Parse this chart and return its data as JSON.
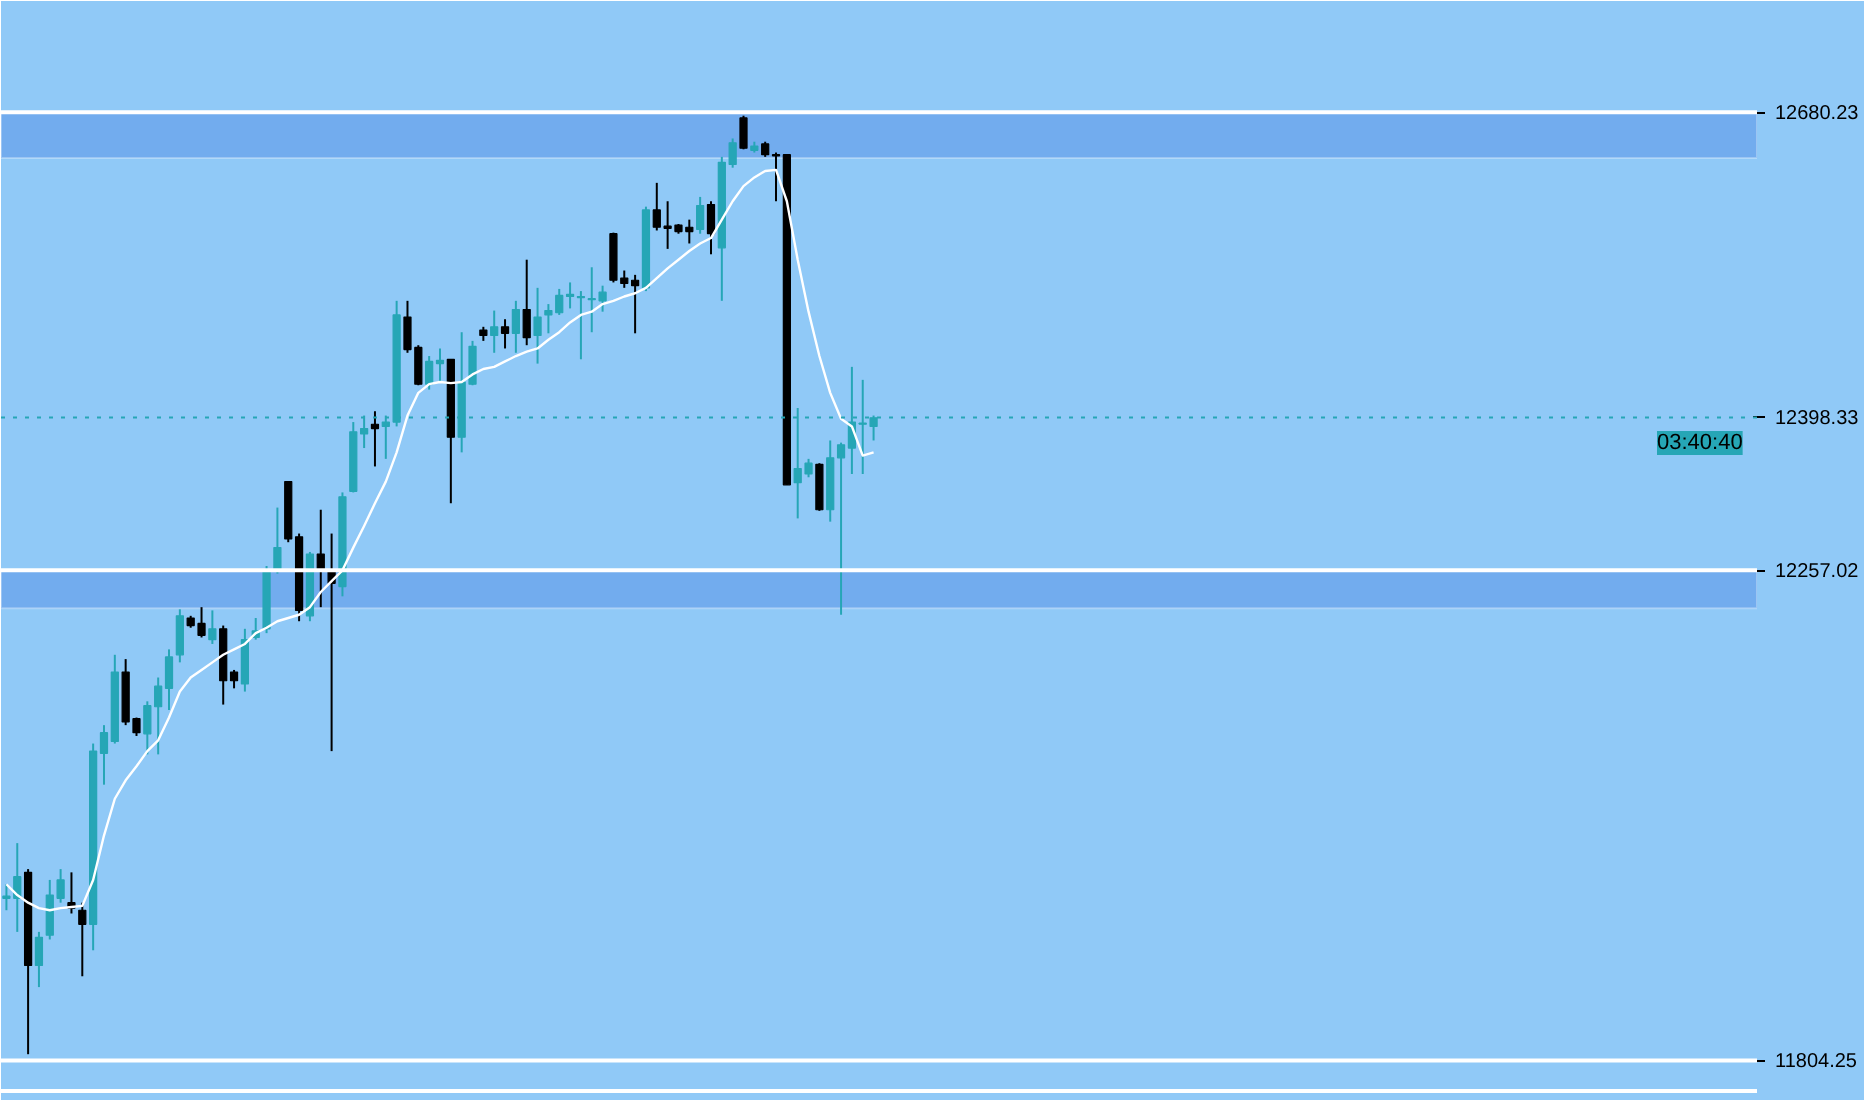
{
  "chart_data": {
    "type": "candlestick",
    "categories": [
      null,
      null,
      null,
      null,
      null,
      null,
      null,
      null,
      null,
      null,
      null,
      null,
      null,
      null,
      null,
      null,
      null,
      null,
      null,
      null,
      null,
      null,
      null,
      null,
      null,
      null,
      null,
      null,
      null,
      null,
      null,
      null,
      null,
      null,
      null,
      null,
      null,
      null,
      null,
      null,
      null,
      null,
      null,
      null,
      null,
      null,
      null,
      null,
      null,
      null,
      null,
      null,
      null,
      null,
      null,
      null,
      null,
      null,
      null,
      null,
      null,
      null,
      null,
      null,
      null,
      null,
      null,
      null,
      null,
      null,
      null,
      null,
      null,
      null,
      null,
      null,
      null,
      null,
      null,
      null,
      null,
      null,
      null,
      null,
      null,
      null,
      null,
      null,
      null,
      null,
      null,
      null,
      null,
      null,
      null,
      null,
      null,
      null,
      null,
      null,
      null,
      null,
      null,
      null,
      null,
      null,
      null,
      null,
      null,
      null,
      null,
      null,
      null,
      null,
      null,
      null,
      null,
      null,
      null,
      null,
      null,
      null,
      null,
      null,
      null,
      null,
      null,
      null,
      null,
      null,
      null,
      null,
      null,
      null,
      null,
      null,
      null,
      null,
      null,
      null,
      null,
      null,
      null,
      null,
      null,
      null,
      null,
      null,
      null,
      null,
      null,
      null,
      null,
      null,
      null,
      null,
      null,
      null,
      null,
      null,
      null,
      null
    ],
    "ohlc": [
      [
        11954,
        11967,
        11943,
        11956
      ],
      [
        11954,
        12005,
        11923,
        11974
      ],
      [
        11978,
        11981,
        11810,
        11892
      ],
      [
        11892,
        11923,
        11872,
        11918
      ],
      [
        11920,
        11971,
        11916,
        11957
      ],
      [
        11954,
        11981,
        11950,
        11971
      ],
      [
        11950,
        11978,
        11940,
        11945
      ],
      [
        11943,
        11950,
        11882,
        11930
      ],
      [
        11930,
        12097,
        11906,
        12090
      ],
      [
        12088,
        12114,
        12059,
        12107
      ],
      [
        12099,
        12179,
        12097,
        12163
      ],
      [
        12163,
        12175,
        12114,
        12117
      ],
      [
        12120,
        12121,
        12104,
        12107
      ],
      [
        12106,
        12136,
        12087,
        12132
      ],
      [
        12131,
        12158,
        12087,
        12150
      ],
      [
        12148,
        12184,
        12128,
        12177
      ],
      [
        12179,
        12221,
        12172,
        12215
      ],
      [
        12213,
        12215,
        12204,
        12206
      ],
      [
        12208,
        12223,
        12195,
        12197
      ],
      [
        12193,
        12220,
        12189,
        12203
      ],
      [
        12203,
        12206,
        12133,
        12155
      ],
      [
        12163,
        12165,
        12148,
        12155
      ],
      [
        12152,
        12203,
        12145,
        12193
      ],
      [
        12195,
        12213,
        12193,
        12201
      ],
      [
        12203,
        12261,
        12199,
        12256
      ],
      [
        12257,
        12315,
        12254,
        12278
      ],
      [
        12339,
        12339,
        12283,
        12286
      ],
      [
        12288,
        12291,
        12210,
        12220
      ],
      [
        12215,
        12274,
        12210,
        12272
      ],
      [
        12272,
        12313,
        12223,
        12257
      ],
      [
        12257,
        12291,
        12090,
        12245
      ],
      [
        12242,
        12329,
        12233,
        12325
      ],
      [
        12330,
        12394,
        12329,
        12385
      ],
      [
        12383,
        12400,
        12370,
        12388
      ],
      [
        12392,
        12404,
        12353,
        12388
      ],
      [
        12390,
        12400,
        12360,
        12394
      ],
      [
        12394,
        12506,
        12390,
        12493
      ],
      [
        12491,
        12506,
        12458,
        12461
      ],
      [
        12463,
        12465,
        12428,
        12429
      ],
      [
        12429,
        12455,
        12424,
        12450
      ],
      [
        12448,
        12462,
        12431,
        12451
      ],
      [
        12452,
        12452,
        12319,
        12380
      ],
      [
        12380,
        12477,
        12366,
        12431
      ],
      [
        12429,
        12469,
        12428,
        12464
      ],
      [
        12479,
        12482,
        12469,
        12474
      ],
      [
        12474,
        12497,
        12458,
        12482
      ],
      [
        12482,
        12489,
        12462,
        12476
      ],
      [
        12476,
        12506,
        12458,
        12498
      ],
      [
        12498,
        12544,
        12465,
        12472
      ],
      [
        12474,
        12518,
        12448,
        12491
      ],
      [
        12493,
        12503,
        12476,
        12497
      ],
      [
        12495,
        12517,
        12493,
        12511
      ],
      [
        12510,
        12523,
        12499,
        12512
      ],
      [
        12509,
        12515,
        12452,
        12510
      ],
      [
        12507,
        12537,
        12477,
        12508
      ],
      [
        12506,
        12520,
        12496,
        12514
      ],
      [
        12568,
        12569,
        12523,
        12525
      ],
      [
        12527,
        12534,
        12518,
        12522
      ],
      [
        12525,
        12530,
        12476,
        12520
      ],
      [
        12518,
        12593,
        12515,
        12590
      ],
      [
        12590,
        12615,
        12571,
        12574
      ],
      [
        12575,
        12598,
        12554,
        12573
      ],
      [
        12576,
        12577,
        12568,
        12570
      ],
      [
        12574,
        12581,
        12559,
        12570
      ],
      [
        12572,
        12602,
        12568,
        12594
      ],
      [
        12595,
        12598,
        12549,
        12568
      ],
      [
        12555,
        12639,
        12506,
        12634
      ],
      [
        12632,
        12656,
        12629,
        12652
      ],
      [
        12675,
        12677,
        12646,
        12647
      ],
      [
        12645,
        12653,
        12643,
        12649
      ],
      [
        12651,
        12653,
        12639,
        12641
      ],
      [
        12641,
        12643,
        12598,
        12640
      ],
      [
        12641,
        12641,
        12336,
        12336
      ],
      [
        12338,
        12407,
        12305,
        12351
      ],
      [
        12346,
        12360,
        12343,
        12356
      ],
      [
        12355,
        12356,
        12312,
        12313
      ],
      [
        12313,
        12377,
        12302,
        12361
      ],
      [
        12361,
        12375,
        12216,
        12373
      ],
      [
        12370,
        12445,
        12346,
        12394
      ],
      [
        12392,
        12433,
        12346,
        12393
      ],
      [
        12390,
        12400,
        12377,
        12398
      ],
      null,
      null,
      null,
      null,
      null,
      null,
      null,
      null,
      null,
      null,
      null,
      null,
      null,
      null,
      null,
      null,
      null,
      null,
      null,
      null,
      null,
      null,
      null,
      null,
      null,
      null,
      null,
      null,
      null,
      null,
      null,
      null,
      null,
      null,
      null,
      null,
      null,
      null,
      null,
      null,
      null,
      null,
      null,
      null,
      null,
      null,
      null,
      null,
      null,
      null,
      null,
      null,
      null,
      null,
      null,
      null,
      null,
      null,
      null,
      null,
      null,
      null,
      null,
      null,
      null,
      null,
      null,
      null,
      null,
      null,
      null,
      null,
      null,
      null,
      null,
      null,
      null,
      null,
      null,
      null,
      null
    ],
    "series": [
      {
        "type": "line",
        "color": "#ffffff",
        "values": [
          11967,
          11957,
          11950,
          11945,
          11943,
          11945,
          11946,
          11947,
          11971,
          12012,
          12046,
          12063,
          12076,
          12090,
          12100,
          12121,
          12145,
          12158,
          12165,
          12172,
          12179,
          12184,
          12189,
          12199,
          12204,
          12210,
          12213,
          12216,
          12223,
          12237,
          12247,
          12257,
          12278,
          12298,
          12319,
          12339,
          12366,
          12400,
          12421,
          12429,
          12431,
          12430,
          12431,
          12438,
          12443,
          12445,
          12450,
          12455,
          12459,
          12462,
          12470,
          12477,
          12486,
          12493,
          12496,
          12503,
          12506,
          12510,
          12513,
          12518,
          12527,
          12536,
          12544,
          12552,
          12559,
          12564,
          12581,
          12598,
          12612,
          12620,
          12626,
          12627,
          12598,
          12544,
          12496,
          12455,
          12421,
          12397,
          12390,
          12363,
          12366,
          null,
          null,
          null,
          null,
          null,
          null,
          null,
          null,
          null,
          null,
          null,
          null,
          null,
          null,
          null,
          null,
          null,
          null,
          null,
          null,
          null,
          null,
          null,
          null,
          null,
          null,
          null,
          null,
          null,
          null,
          null,
          null,
          null,
          null,
          null,
          null,
          null,
          null,
          null,
          null,
          null,
          null,
          null,
          null,
          null,
          null,
          null,
          null,
          null,
          null,
          null,
          null,
          null,
          null,
          null,
          null,
          null,
          null,
          null,
          null,
          null,
          null,
          null,
          null,
          null,
          null,
          null,
          null,
          null,
          null,
          null,
          null,
          null,
          null,
          null,
          null,
          null,
          null,
          null,
          null,
          null
        ]
      }
    ],
    "ylim": [
      11776,
      12783
    ],
    "yticks": [
      {
        "value": 12680.23,
        "label": "12680.23"
      },
      {
        "value": 12398.33,
        "label": "12398.33"
      },
      {
        "value": 12257.02,
        "label": "12257.02"
      },
      {
        "value": 11804.25,
        "label": "11804.25"
      }
    ],
    "tick_labels": "y",
    "ref_lines": [
      {
        "axis": "y",
        "value": 12680.23,
        "color": "#ffffff",
        "line_style": "solid"
      },
      {
        "axis": "y",
        "value": 12398.33,
        "color": "#26a6b6",
        "line_style": "dotted"
      },
      {
        "axis": "y",
        "value": 12257.02,
        "color": "#ffffff",
        "line_style": "solid"
      },
      {
        "axis": "y",
        "value": 11804.25,
        "color": "#ffffff",
        "line_style": "solid"
      }
    ],
    "bands": [
      {
        "axis": "y",
        "from": 12638,
        "to": 12680.23,
        "color": "#6fa8ec"
      },
      {
        "axis": "y",
        "from": 12222,
        "to": 12257.02,
        "color": "#6fa8ec"
      }
    ],
    "annotations": [
      "03:40:40"
    ]
  }
}
